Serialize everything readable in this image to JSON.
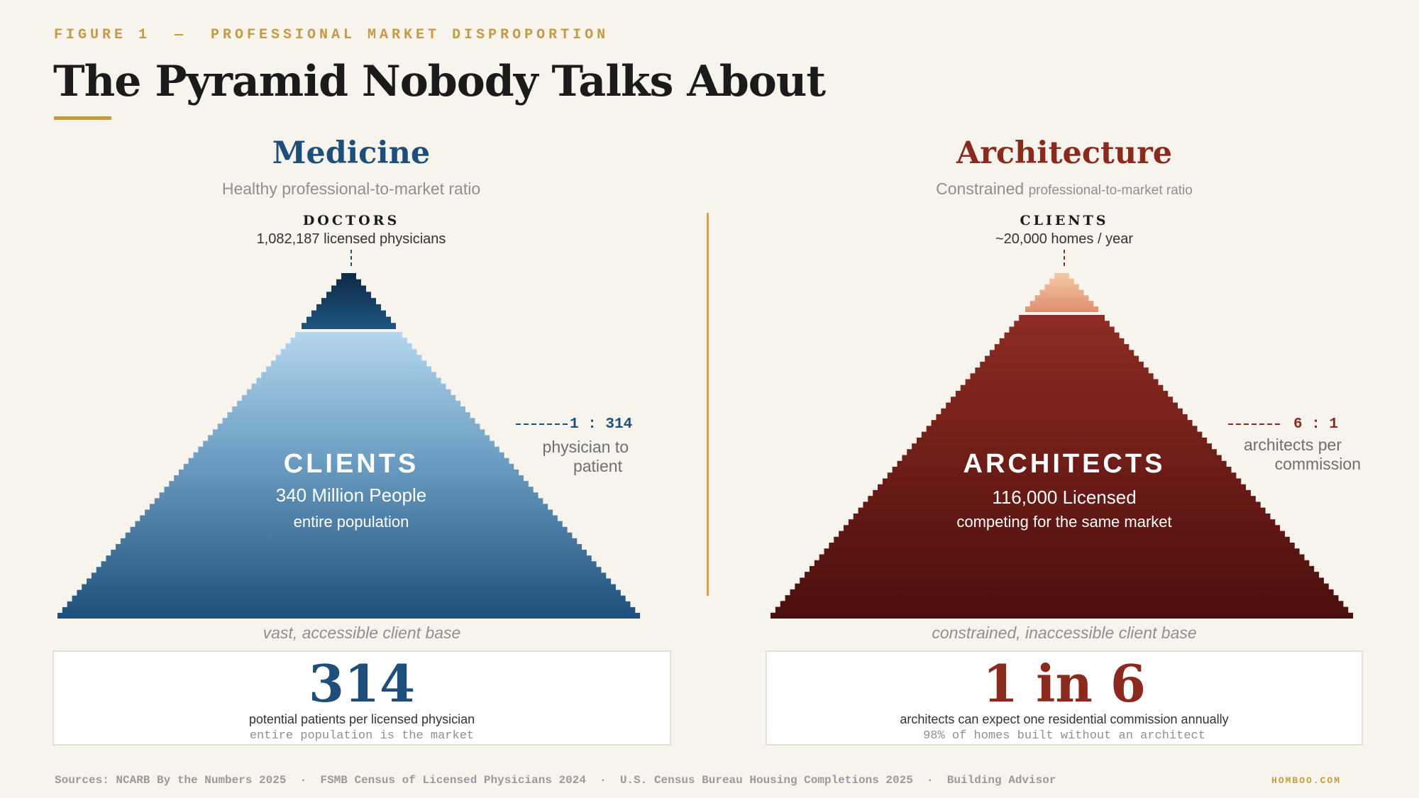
{
  "figure_label": "FIGURE 1  —  PROFESSIONAL MARKET DISPROPORTION",
  "title": "The Pyramid Nobody Talks About",
  "medicine": {
    "title": "Medicine",
    "subtitle": "Healthy professional-to-market ratio",
    "apex_label": "DOCTORS",
    "apex_sub": "1,082,187 licensed physicians",
    "body_label": "CLIENTS",
    "body_value": "340 Million People",
    "body_note": "entire population",
    "ratio": "1 : 314",
    "ratio_desc_1": "physician to",
    "ratio_desc_2": "patient",
    "base_caption": "vast, accessible client base",
    "stat_number": "314",
    "stat_desc": "potential patients per licensed physician",
    "stat_note": "entire population is the market",
    "color": "#1e4f7a"
  },
  "architecture": {
    "title": "Architecture",
    "subtitle_main": "Constrained",
    "subtitle_small": "professional-to-market ratio",
    "apex_label": "CLIENTS",
    "apex_sub": "~20,000 homes / year",
    "body_label": "ARCHITECTS",
    "body_value": "116,000 Licensed",
    "body_note": "competing for the same market",
    "ratio": "6 : 1",
    "ratio_desc_1": "architects per",
    "ratio_desc_2": "commission",
    "base_caption": "constrained, inaccessible client base",
    "stat_number": "1 in 6",
    "stat_desc": "architects can expect one residential commission annually",
    "stat_note": "98% of homes built without an architect",
    "color": "#8a2a1f"
  },
  "sources": "Sources: NCARB By the Numbers 2025  ·  FSMB Census of Licensed Physicians 2024  ·  U.S. Census Bureau Housing Completions 2025  ·  Building Advisor",
  "brand": "HOMBOO.COM"
}
